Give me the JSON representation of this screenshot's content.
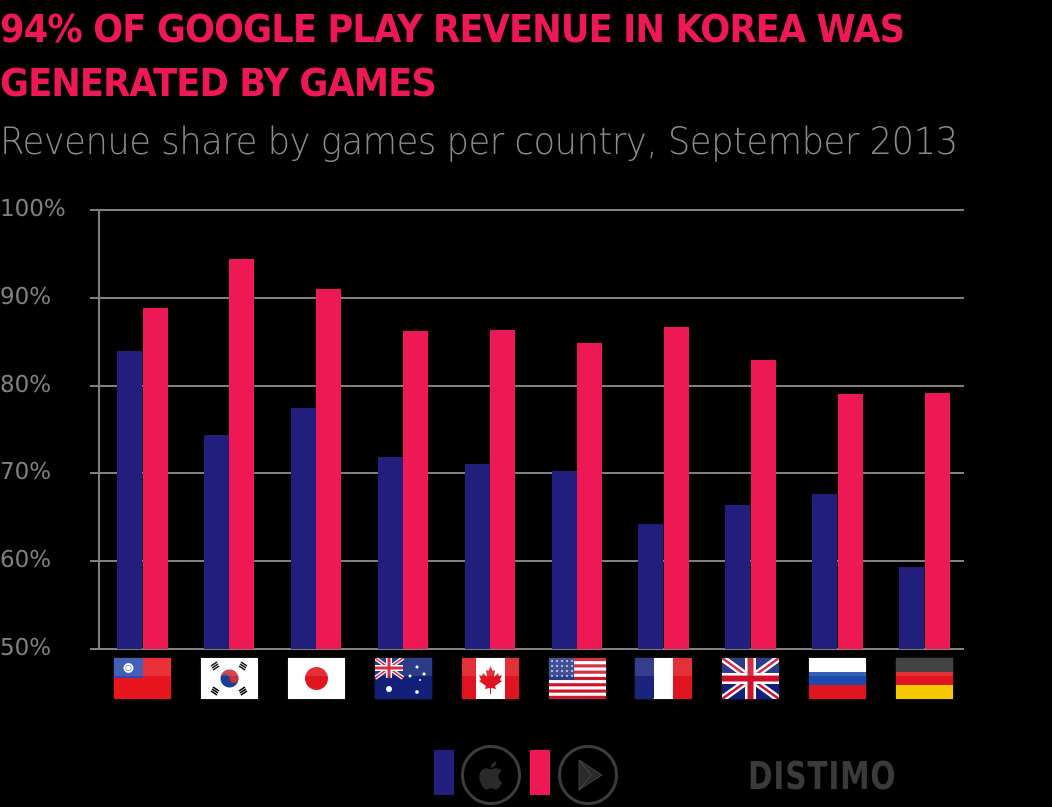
{
  "header": {
    "title_line1": "94% OF GOOGLE PLAY REVENUE IN KOREA WAS",
    "title_line2": "GENERATED BY GAMES",
    "subtitle": "Revenue share by games per country, September 2013"
  },
  "colors": {
    "title": "#ee1855",
    "ios_series": "#221e7e",
    "google_play_series": "#ee1855",
    "grid": "#808080",
    "background": "#000000"
  },
  "chart_data": {
    "type": "bar",
    "title": "94% OF GOOGLE PLAY REVENUE IN KOREA WAS GENERATED BY GAMES",
    "subtitle": "Revenue share by games per country, September 2013",
    "xlabel": "",
    "ylabel": "",
    "ylim": [
      50,
      100
    ],
    "yticks": [
      "100%",
      "90%",
      "80%",
      "70%",
      "60%",
      "50%"
    ],
    "grid": true,
    "legend_position": "bottom",
    "categories": [
      "Taiwan",
      "South Korea",
      "Japan",
      "Australia",
      "Canada",
      "United States",
      "France",
      "United Kingdom",
      "Russia",
      "Germany"
    ],
    "category_icons": [
      "flag-taiwan",
      "flag-south-korea",
      "flag-japan",
      "flag-australia",
      "flag-canada",
      "flag-united-states",
      "flag-france",
      "flag-united-kingdom",
      "flag-russia",
      "flag-germany"
    ],
    "series": [
      {
        "name": "iOS App Store",
        "icon": "apple-icon",
        "color": "#221e7e",
        "values": [
          83.9,
          74.4,
          77.4,
          71.9,
          71.1,
          70.3,
          64.2,
          66.4,
          67.7,
          59.3
        ]
      },
      {
        "name": "Google Play",
        "icon": "google-play-icon",
        "color": "#ee1855",
        "values": [
          88.8,
          94.4,
          91.0,
          86.2,
          86.3,
          84.9,
          86.7,
          82.9,
          79.0,
          79.2
        ]
      }
    ]
  },
  "legend": {
    "items": [
      {
        "label": "iOS App Store",
        "icon": "apple-icon"
      },
      {
        "label": "Google Play",
        "icon": "google-play-icon"
      }
    ]
  },
  "branding": {
    "logo_text": "DISTIMO"
  }
}
